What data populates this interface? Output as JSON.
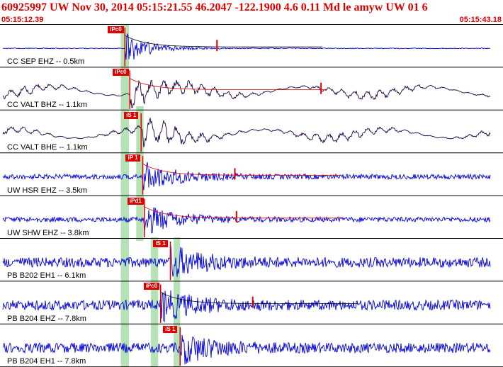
{
  "header": {
    "title": "60925997 UW Nov 30, 2014 05:15:21.55   46.2047 -122.1900  4.6 0.11 Md le amyw UW 01   6",
    "start_time": "05:15:12.39",
    "end_time": "05:15:43.18"
  },
  "colors": {
    "header": "#e00000",
    "trace_blue": "#0000e0",
    "trace_dark": "#200040",
    "pick": "#e00000",
    "phase_window": "#b6e3b6",
    "border": "#000000"
  },
  "traces": [
    {
      "label": "CC SEP EHZ -- 0.5km",
      "color_key": "trace_blue",
      "pick_label": "iPc0",
      "p_time_s": 7.6
    },
    {
      "label": "CC VALT BHZ -- 1.1km",
      "color_key": "trace_dark",
      "pick_label": "iPc0",
      "p_time_s": 7.9
    },
    {
      "label": "CC VALT BHE -- 1.1km",
      "color_key": "trace_dark",
      "pick_label": "iS 1",
      "p_time_s": 8.6
    },
    {
      "label": "UW HSR EHZ -- 3.5km",
      "color_key": "trace_blue",
      "pick_label": "iP 1",
      "p_time_s": 8.7
    },
    {
      "label": "UW SHW EHZ -- 3.8km",
      "color_key": "trace_blue",
      "pick_label": "iPd1",
      "p_time_s": 8.8
    },
    {
      "label": "PB B202 EH1 -- 6.1km",
      "color_key": "trace_blue",
      "pick_label": "iS 1",
      "p_time_s": 10.4
    },
    {
      "label": "PB B204 EHZ -- 7.8km",
      "color_key": "trace_blue",
      "pick_label": "iPc0",
      "p_time_s": 9.8
    },
    {
      "label": "PB B204 EH1 -- 7.8km",
      "color_key": "trace_blue",
      "pick_label": "iS 1",
      "p_time_s": 11.0
    }
  ]
}
